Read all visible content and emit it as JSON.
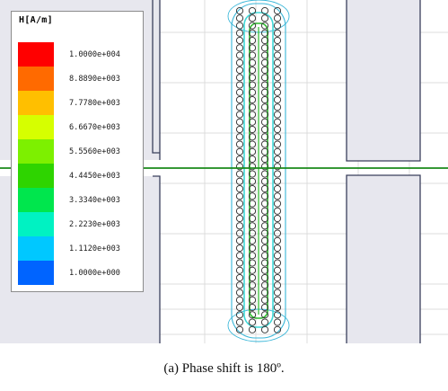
{
  "legend": {
    "title": "H[A/m]",
    "entries": [
      {
        "label": "1.0000e+004",
        "color": "#ff0000"
      },
      {
        "label": "8.8890e+003",
        "color": "#ff6a00"
      },
      {
        "label": "7.7780e+003",
        "color": "#ffbf00"
      },
      {
        "label": "6.6670e+003",
        "color": "#d6ff00"
      },
      {
        "label": "5.5560e+003",
        "color": "#7df000"
      },
      {
        "label": "4.4450e+003",
        "color": "#2ed400"
      },
      {
        "label": "3.3340e+003",
        "color": "#00e64d"
      },
      {
        "label": "2.2230e+003",
        "color": "#00f2c2"
      },
      {
        "label": "1.1120e+003",
        "color": "#00c8ff"
      },
      {
        "label": "1.0000e+000",
        "color": "#0064ff"
      }
    ]
  },
  "plot": {
    "colors": {
      "grid": "#dcdcdc",
      "core": "#e7e7ee",
      "core_edge": "#3a3f5c",
      "horizontal_line": "#1a8a1a",
      "coil_turn": "#2b2b2b",
      "field_cyan": "#3fd8d8",
      "field_green": "#2ab82a",
      "field_outline": "#38b6d8"
    }
  },
  "caption": "(a)   Phase shift is 180º."
}
